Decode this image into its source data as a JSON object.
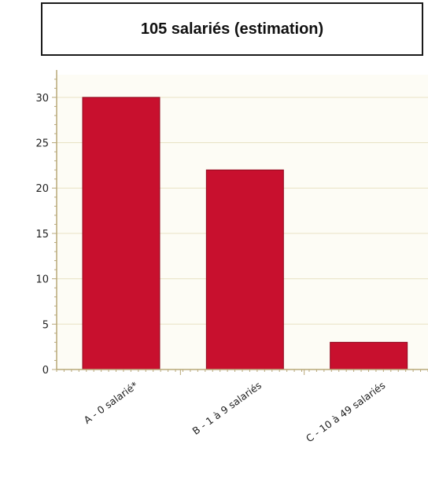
{
  "chart_data": {
    "type": "bar",
    "title": "105 salariés (estimation)",
    "categories": [
      "A - 0 salarié*",
      "B - 1 à 9 salariés",
      "C - 10 à 49 salariés"
    ],
    "values": [
      30,
      22,
      3
    ],
    "ylim": [
      0,
      32.5
    ],
    "yticks": [
      0,
      5,
      10,
      15,
      20,
      25,
      30
    ],
    "xlabel": "",
    "ylabel": "",
    "grid": true,
    "legend": "none",
    "colors": {
      "bar": "#c8102e",
      "bar_edge": "#8f0a20",
      "plot_background": "#fdfcf5",
      "grid": "#e8e2c4",
      "axis": "#b8a878"
    }
  }
}
